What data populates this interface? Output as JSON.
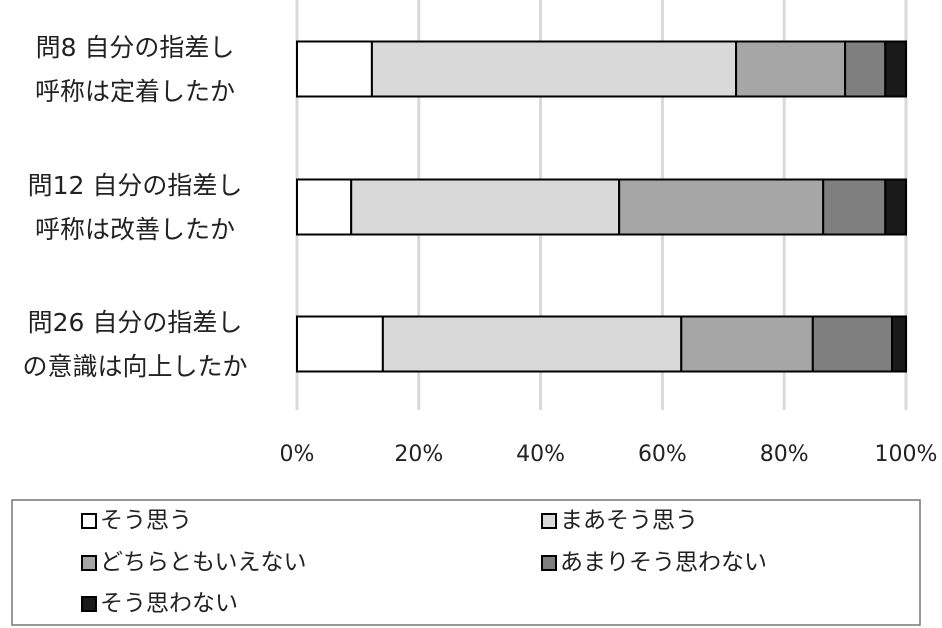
{
  "chart_data": {
    "type": "stacked-bar-horizontal",
    "categories": [
      [
        "問8 自分の指差し",
        "呼称は定着したか"
      ],
      [
        "問12 自分の指差し",
        "呼称は改善したか"
      ],
      [
        "問26 自分の指差し",
        "の意識は向上したか"
      ]
    ],
    "series": [
      {
        "name": "そう思う",
        "color": "#ffffff",
        "values": [
          12.3,
          8.9,
          14.1
        ]
      },
      {
        "name": "まあそう思う",
        "color": "#d9d9d9",
        "values": [
          59.8,
          44.0,
          49.0
        ]
      },
      {
        "name": "どちらともいえない",
        "color": "#a6a6a6",
        "values": [
          17.9,
          33.5,
          21.6
        ]
      },
      {
        "name": "あまりそう思わない",
        "color": "#7f7f7f",
        "values": [
          6.6,
          10.2,
          13.0
        ]
      },
      {
        "name": "そう思わない",
        "color": "#1a1a1a",
        "values": [
          3.4,
          3.4,
          2.3
        ]
      }
    ],
    "xlim": [
      0,
      100
    ],
    "xticks": [
      {
        "value": 0,
        "label": "0%"
      },
      {
        "value": 20,
        "label": "20%"
      },
      {
        "value": 40,
        "label": "40%"
      },
      {
        "value": 60,
        "label": "60%"
      },
      {
        "value": 80,
        "label": "80%"
      },
      {
        "value": 100,
        "label": "100%"
      }
    ],
    "grid": true,
    "legend": "bottom"
  }
}
